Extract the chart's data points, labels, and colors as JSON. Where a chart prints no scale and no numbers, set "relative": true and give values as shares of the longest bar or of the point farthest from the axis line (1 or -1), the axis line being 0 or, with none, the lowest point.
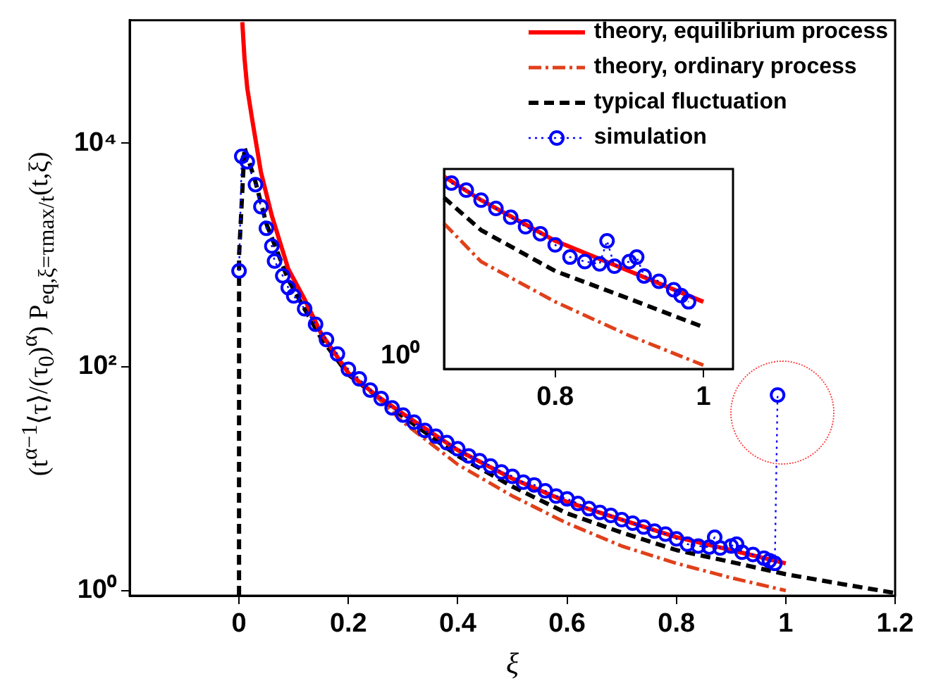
{
  "chart_data": [
    {
      "type": "line",
      "xlabel": "ξ",
      "ylabel": "(t$^{α−1}$⟨τ⟩/(τ$_{0}$)$^{α}$) P$_{eq,ξ=τmax/t}$(t,ξ)",
      "log": "y",
      "grid": false,
      "legend": "top right",
      "xlim": [
        -0.2,
        1.2
      ],
      "xticks": [
        0,
        0.2,
        0.4,
        0.6,
        0.8,
        1,
        1.2
      ],
      "ylim": [
        0.9,
        125000
      ],
      "yticks": [
        {
          "value": 1,
          "label": "10⁰"
        },
        {
          "value": 100,
          "label": "10²"
        },
        {
          "value": 10000,
          "label": "10⁴"
        }
      ],
      "series": [
        {
          "name": "theory, equilibrium process",
          "color": "#ff0000",
          "line_style": "solid",
          "x": [
            0.006,
            0.01,
            0.015,
            0.024,
            0.04,
            0.06,
            0.09,
            0.12,
            0.15,
            0.2,
            0.25,
            0.3,
            0.4,
            0.5,
            0.6,
            0.7,
            0.8,
            0.9,
            1.0
          ],
          "values": [
            120000,
            57000,
            31000,
            16300,
            5500,
            2240,
            750,
            400,
            200,
            88,
            56,
            38,
            18,
            10,
            6.2,
            4.3,
            3.0,
            2.3,
            1.75
          ]
        },
        {
          "name": "theory, ordinary process",
          "color": "#e0401a",
          "line_style": "dashdot",
          "x": [
            0.006,
            0.01,
            0.015,
            0.024,
            0.04,
            0.06,
            0.09,
            0.12,
            0.15,
            0.2,
            0.25,
            0.3,
            0.4,
            0.5,
            0.6,
            0.7,
            0.8,
            0.9,
            1.0
          ],
          "values": [
            120000,
            57000,
            31000,
            16300,
            5500,
            2240,
            750,
            400,
            200,
            88,
            55,
            32,
            13.4,
            7,
            4.0,
            2.5,
            1.75,
            1.3,
            1.0
          ]
        },
        {
          "name": "typical fluctuation",
          "color": "#000000",
          "line_style": "dashed",
          "x": [
            0,
            0.0001,
            0.01,
            0.03,
            0.05,
            0.09,
            0.15,
            0.2,
            0.3,
            0.4,
            0.5,
            0.6,
            0.7,
            0.8,
            0.9,
            1.0,
            1.1,
            1.2
          ],
          "values": [
            0.9,
            1000,
            9100,
            4500,
            1900,
            600,
            180,
            85,
            36,
            16,
            8.5,
            4.9,
            3.3,
            2.3,
            1.8,
            1.4,
            1.15,
            0.95
          ]
        },
        {
          "name": "simulation",
          "color": "#0000ff",
          "type": "line",
          "line_style": "dotted",
          "marker": "circle",
          "x": [
            0,
            0.005,
            0.015,
            0.03,
            0.04,
            0.05,
            0.06,
            0.065,
            0.08,
            0.09,
            0.1,
            0.12,
            0.14,
            0.16,
            0.18,
            0.2,
            0.22,
            0.24,
            0.26,
            0.28,
            0.3,
            0.32,
            0.34,
            0.36,
            0.38,
            0.4,
            0.42,
            0.44,
            0.46,
            0.48,
            0.5,
            0.52,
            0.54,
            0.56,
            0.58,
            0.6,
            0.62,
            0.64,
            0.66,
            0.68,
            0.7,
            0.72,
            0.74,
            0.76,
            0.78,
            0.8,
            0.82,
            0.84,
            0.86,
            0.87,
            0.88,
            0.9,
            0.91,
            0.92,
            0.94,
            0.96,
            0.97,
            0.98,
            0.985
          ],
          "values": [
            720,
            7600,
            6800,
            4250,
            2700,
            1730,
            1200,
            880,
            650,
            510,
            430,
            330,
            240,
            175,
            130,
            95,
            78,
            62,
            52,
            43,
            37,
            32,
            27,
            24,
            21,
            18.5,
            16,
            14.5,
            13,
            11.5,
            10.5,
            9.3,
            8.8,
            7.8,
            7.0,
            6.6,
            6.0,
            5.4,
            5.0,
            4.7,
            4.3,
            4.0,
            3.7,
            3.4,
            3.2,
            2.9,
            2.6,
            2.5,
            2.45,
            3.0,
            2.4,
            2.5,
            2.6,
            2.2,
            2.1,
            1.95,
            1.85,
            1.75,
            56
          ]
        }
      ]
    },
    {
      "type": "line",
      "grid": false,
      "relative": true,
      "annotations": [
        "10⁰"
      ],
      "xlim": [
        0.65,
        1.04
      ],
      "xticks": [
        0.8,
        1
      ],
      "series": [
        {
          "color": "#ff0000",
          "line_style": "solid",
          "x": [
            0.65,
            0.7,
            0.8,
            0.9,
            1.0
          ],
          "values": [
            1,
            0.875,
            0.659,
            0.499,
            0.336
          ]
        },
        {
          "color": "#e0401a",
          "line_style": "dashdot",
          "x": [
            0.65,
            0.7,
            0.8,
            0.9,
            1.0
          ],
          "values": [
            0.751,
            0.549,
            0.336,
            0.157,
            0
          ]
        },
        {
          "color": "#000000",
          "line_style": "dashed",
          "x": [
            0.65,
            0.7,
            0.8,
            0.9,
            1.0
          ],
          "values": [
            0.888,
            0.716,
            0.499,
            0.352,
            0.202
          ]
        },
        {
          "color": "#0000ff",
          "line_style": "dotted",
          "marker": "circle",
          "x": [
            0.66,
            0.68,
            0.7,
            0.72,
            0.74,
            0.76,
            0.78,
            0.8,
            0.82,
            0.84,
            0.86,
            0.87,
            0.88,
            0.9,
            0.91,
            0.92,
            0.94,
            0.96,
            0.97,
            0.98
          ],
          "values": [
            0.965,
            0.928,
            0.875,
            0.831,
            0.784,
            0.734,
            0.697,
            0.638,
            0.573,
            0.549,
            0.537,
            0.659,
            0.525,
            0.549,
            0.573,
            0.473,
            0.445,
            0.4,
            0.369,
            0.336
          ]
        }
      ]
    }
  ]
}
